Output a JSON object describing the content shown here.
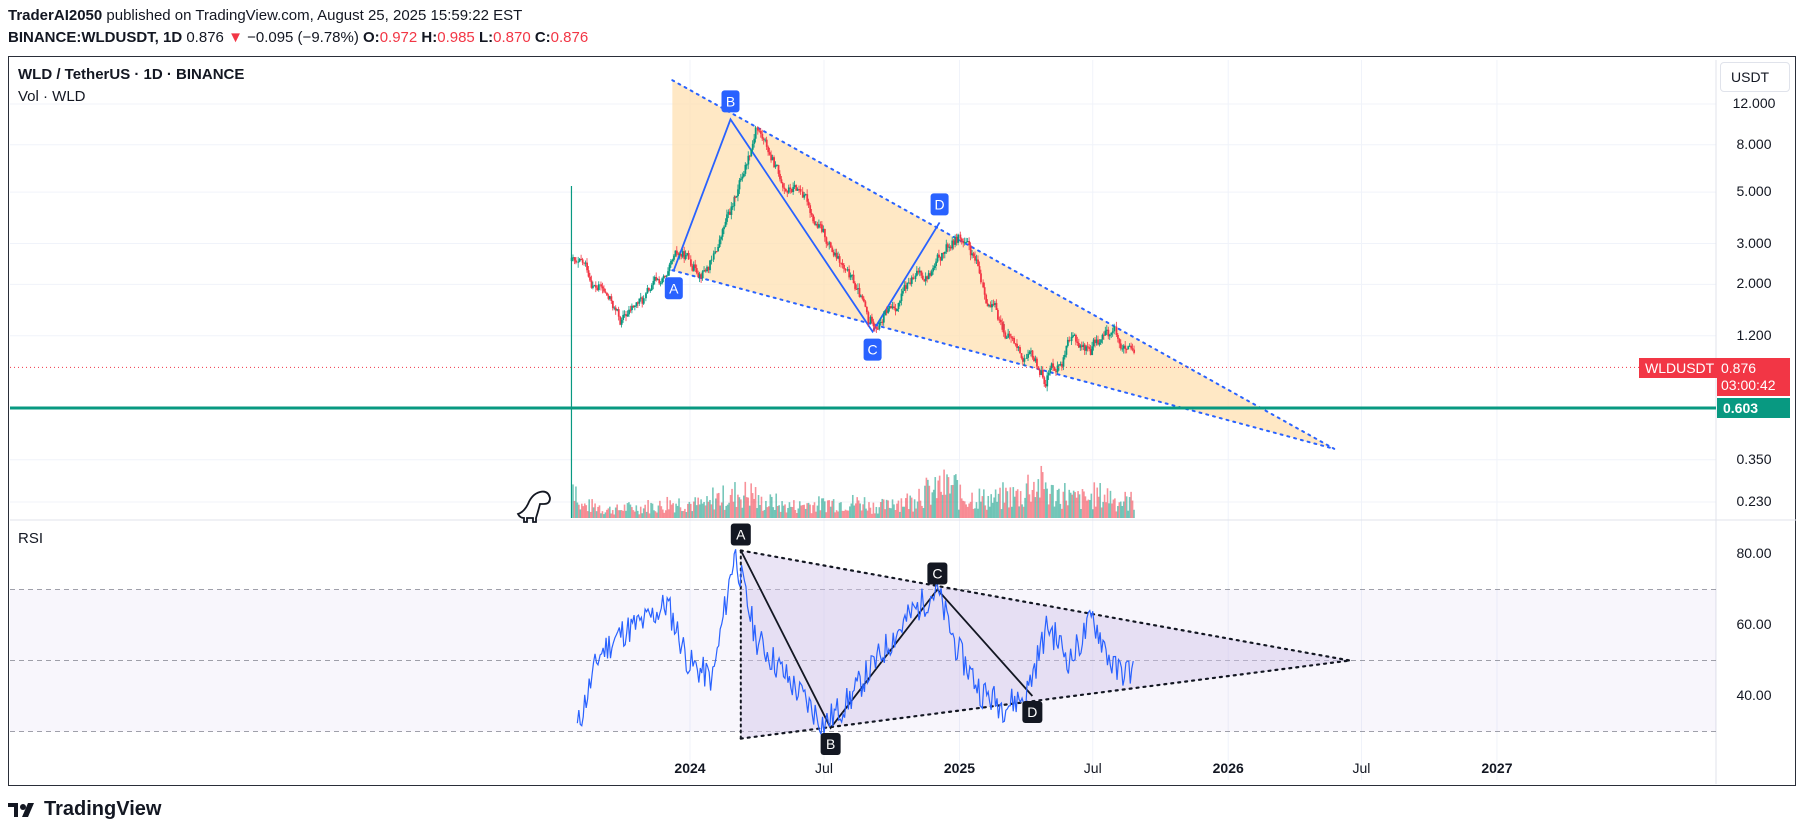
{
  "header": {
    "author": "TraderAI2050",
    "published_text": "published on TradingView.com, August 25, 2025 15:59:22 EST",
    "symbol_full": "BINANCE:WLDUSDT, 1D",
    "last": "0.876",
    "change_arrow": "▼",
    "change": "−0.095 (−9.78%)",
    "o_label": "O:",
    "o_val": "0.972",
    "h_label": "H:",
    "h_val": "0.985",
    "l_label": "L:",
    "l_val": "0.870",
    "c_label": "C:",
    "c_val": "0.876"
  },
  "chart": {
    "title": "WLD / TetherUS · 1D · BINANCE",
    "volume_label": "Vol · WLD",
    "rsi_label": "RSI",
    "currency": "USDT",
    "symbol_tag": "WLDUSDT",
    "price_tag": "0.876",
    "countdown": "03:00:42",
    "support_tag": "0.603",
    "price_axis": [
      "12.000",
      "8.000",
      "5.000",
      "3.000",
      "2.000",
      "1.200",
      "0.350",
      "0.230"
    ],
    "rsi_axis": [
      "80.00",
      "60.00",
      "40.00"
    ],
    "time_axis": [
      {
        "label": "2024",
        "bold": true
      },
      {
        "label": "Jul",
        "bold": false
      },
      {
        "label": "2025",
        "bold": true
      },
      {
        "label": "Jul",
        "bold": false
      },
      {
        "label": "2026",
        "bold": true
      },
      {
        "label": "Jul",
        "bold": false
      },
      {
        "label": "2027",
        "bold": true
      }
    ],
    "price_pattern_labels": [
      "A",
      "B",
      "C",
      "D"
    ],
    "rsi_pattern_labels": [
      "A",
      "B",
      "C",
      "D"
    ],
    "colors": {
      "up": "#089981",
      "down": "#f23645",
      "wedge_fill": "#ffe0b2",
      "wedge_line": "#2962ff",
      "rsi_line": "#2962ff",
      "rsi_fill": "#d1c4e9",
      "support": "#089981"
    }
  },
  "chart_data": [
    {
      "type": "candlestick",
      "title": "WLD / TetherUS · 1D · BINANCE",
      "scale": "log",
      "x": [
        "2023-07",
        "2023-08",
        "2023-09",
        "2023-10",
        "2023-11",
        "2023-12",
        "2024-01",
        "2024-02",
        "2024-03",
        "2024-04",
        "2024-05",
        "2024-06",
        "2024-07",
        "2024-08",
        "2024-09",
        "2024-10",
        "2024-11",
        "2024-12",
        "2025-01",
        "2025-02",
        "2025-03",
        "2025-04",
        "2025-05",
        "2025-06",
        "2025-07",
        "2025-08"
      ],
      "close": [
        2.4,
        1.9,
        1.35,
        1.7,
        2.1,
        2.6,
        2.5,
        4.5,
        9.5,
        6.0,
        5.2,
        3.3,
        2.2,
        1.4,
        1.6,
        2.1,
        2.4,
        3.2,
        2.1,
        1.3,
        0.95,
        0.78,
        1.1,
        1.05,
        1.25,
        0.876
      ],
      "volume": [
        1.0,
        0.35,
        0.25,
        0.3,
        0.35,
        0.45,
        0.4,
        0.6,
        0.7,
        0.45,
        0.35,
        0.4,
        0.45,
        0.45,
        0.35,
        0.5,
        0.75,
        0.9,
        0.6,
        0.55,
        0.65,
        0.95,
        0.7,
        0.55,
        0.65,
        0.5
      ],
      "patterns": {
        "wedge_points": {
          "A": 2.3,
          "B": 10.3,
          "C": 1.25,
          "D": 3.7
        },
        "support": 0.603
      }
    },
    {
      "type": "line",
      "title": "RSI",
      "x": [
        "2023-08",
        "2023-09",
        "2023-10",
        "2023-11",
        "2023-12",
        "2024-01",
        "2024-02",
        "2024-03",
        "2024-04",
        "2024-05",
        "2024-06",
        "2024-07",
        "2024-08",
        "2024-09",
        "2024-10",
        "2024-11",
        "2024-12",
        "2025-01",
        "2025-02",
        "2025-03",
        "2025-04",
        "2025-05",
        "2025-06",
        "2025-07",
        "2025-08"
      ],
      "values": [
        31,
        52,
        58,
        61,
        66,
        49,
        45,
        81,
        56,
        48,
        40,
        32,
        38,
        47,
        56,
        64,
        70,
        52,
        41,
        37,
        40,
        60,
        50,
        62,
        47
      ],
      "ylim": [
        28,
        84
      ],
      "levels": [
        70,
        50,
        30
      ],
      "patterns": {
        "A": 81,
        "B": 31,
        "C": 70,
        "D": 40
      }
    }
  ],
  "footer": {
    "brand": "TradingView"
  }
}
